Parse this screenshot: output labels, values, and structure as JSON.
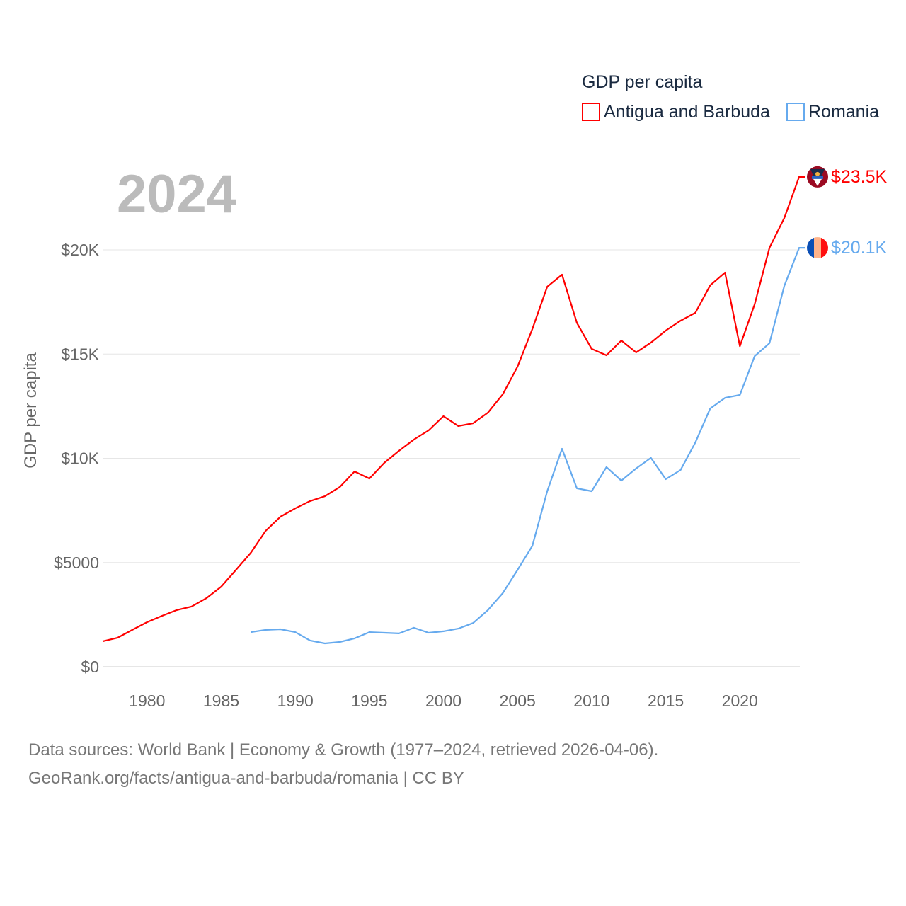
{
  "chart_data": {
    "type": "line",
    "year_label": "2024",
    "ylabel": "GDP per capita",
    "legend_title": "GDP per capita",
    "legend_position": "top-right",
    "xlim": [
      1977,
      2024
    ],
    "ylim": [
      0,
      24000
    ],
    "x_ticks": [
      1980,
      1985,
      1990,
      1995,
      2000,
      2005,
      2010,
      2015,
      2020
    ],
    "x_tick_labels": [
      "1980",
      "1985",
      "1990",
      "1995",
      "2000",
      "2005",
      "2010",
      "2015",
      "2020"
    ],
    "y_ticks": [
      0,
      5000,
      10000,
      15000,
      20000
    ],
    "y_tick_labels": [
      "$0",
      "$5000",
      "$10K",
      "$15K",
      "$20K"
    ],
    "grid": true,
    "series": [
      {
        "name": "Antigua and Barbuda",
        "color": "#ff0000",
        "end_label": "$23.5K",
        "flag": "antigua-and-barbuda-flag",
        "x": [
          1977,
          1978,
          1979,
          1980,
          1981,
          1982,
          1983,
          1984,
          1985,
          1986,
          1987,
          1988,
          1989,
          1990,
          1991,
          1992,
          1993,
          1994,
          1995,
          1996,
          1997,
          1998,
          1999,
          2000,
          2001,
          2002,
          2003,
          2004,
          2005,
          2006,
          2007,
          2008,
          2009,
          2010,
          2011,
          2012,
          2013,
          2014,
          2015,
          2016,
          2017,
          2018,
          2019,
          2020,
          2021,
          2022,
          2023,
          2024
        ],
        "values": [
          1220,
          1390,
          1770,
          2140,
          2440,
          2720,
          2890,
          3290,
          3840,
          4650,
          5470,
          6520,
          7200,
          7600,
          7950,
          8180,
          8620,
          9370,
          9030,
          9780,
          10360,
          10900,
          11340,
          12020,
          11550,
          11680,
          12190,
          13070,
          14400,
          16200,
          18230,
          18810,
          16500,
          15250,
          14940,
          15650,
          15080,
          15550,
          16130,
          16600,
          16980,
          18300,
          18910,
          15380,
          17390,
          20100,
          21530,
          23500
        ]
      },
      {
        "name": "Romania",
        "color": "#66aaee",
        "end_label": "$20.1K",
        "flag": "romania-flag",
        "x": [
          1987,
          1988,
          1989,
          1990,
          1991,
          1992,
          1993,
          1994,
          1995,
          1996,
          1997,
          1998,
          1999,
          2000,
          2001,
          2002,
          2003,
          2004,
          2005,
          2006,
          2007,
          2008,
          2009,
          2010,
          2011,
          2012,
          2013,
          2014,
          2015,
          2016,
          2017,
          2018,
          2019,
          2020,
          2021,
          2022,
          2023,
          2024
        ],
        "values": [
          1660,
          1770,
          1800,
          1660,
          1260,
          1120,
          1190,
          1360,
          1660,
          1630,
          1600,
          1870,
          1630,
          1700,
          1830,
          2100,
          2720,
          3530,
          4650,
          5800,
          8420,
          10460,
          8560,
          8420,
          9580,
          8930,
          9510,
          10020,
          9000,
          9440,
          10760,
          12390,
          12900,
          13040,
          14900,
          15520,
          18270,
          20100
        ]
      }
    ]
  },
  "footer": {
    "line1": "Data sources: World Bank | Economy & Growth (1977–2024, retrieved 2026-04-06).",
    "line2": "GeoRank.org/facts/antigua-and-barbuda/romania | CC BY"
  }
}
